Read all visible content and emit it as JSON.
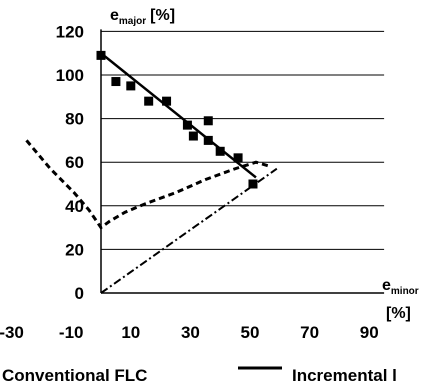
{
  "chart_data": {
    "type": "line",
    "title": "",
    "ylabel": {
      "main": "e",
      "sub": "major",
      "unit": "[%]"
    },
    "xlabel": {
      "main": "e",
      "sub": "minor",
      "unit": "[%]"
    },
    "xlim": [
      -30,
      95
    ],
    "ylim": [
      0,
      120
    ],
    "x_ticks": [
      -30,
      -10,
      10,
      30,
      50,
      70,
      90
    ],
    "y_ticks": [
      0,
      20,
      40,
      60,
      80,
      100,
      120
    ],
    "grid": "horizontal",
    "series": [
      {
        "name": "Incremental l",
        "style": "solid-with-squares",
        "line": [
          [
            0,
            110
          ],
          [
            52,
            53
          ]
        ],
        "points": [
          [
            0,
            109
          ],
          [
            5,
            97
          ],
          [
            10,
            95
          ],
          [
            16,
            88
          ],
          [
            22,
            88
          ],
          [
            29,
            77
          ],
          [
            31,
            72
          ],
          [
            36,
            79
          ],
          [
            36,
            70
          ],
          [
            40,
            65
          ],
          [
            46,
            62
          ],
          [
            51,
            50
          ]
        ]
      },
      {
        "name": "Conventional FLC",
        "style": "dashed",
        "points": [
          [
            -25,
            70
          ],
          [
            -17,
            57
          ],
          [
            -9,
            46
          ],
          [
            -4,
            38
          ],
          [
            0,
            30
          ],
          [
            3,
            33
          ],
          [
            8,
            37
          ],
          [
            15,
            41
          ],
          [
            25,
            46
          ],
          [
            35,
            52
          ],
          [
            45,
            57
          ],
          [
            52,
            60
          ],
          [
            57,
            58
          ]
        ]
      },
      {
        "style": "dash-dot",
        "points": [
          [
            0,
            0
          ],
          [
            59,
            57
          ]
        ]
      }
    ],
    "legend": [
      {
        "label": "Conventional FLC"
      },
      {
        "label": "Incremental l",
        "style": "solid"
      }
    ],
    "legend_placement": "bottom"
  }
}
